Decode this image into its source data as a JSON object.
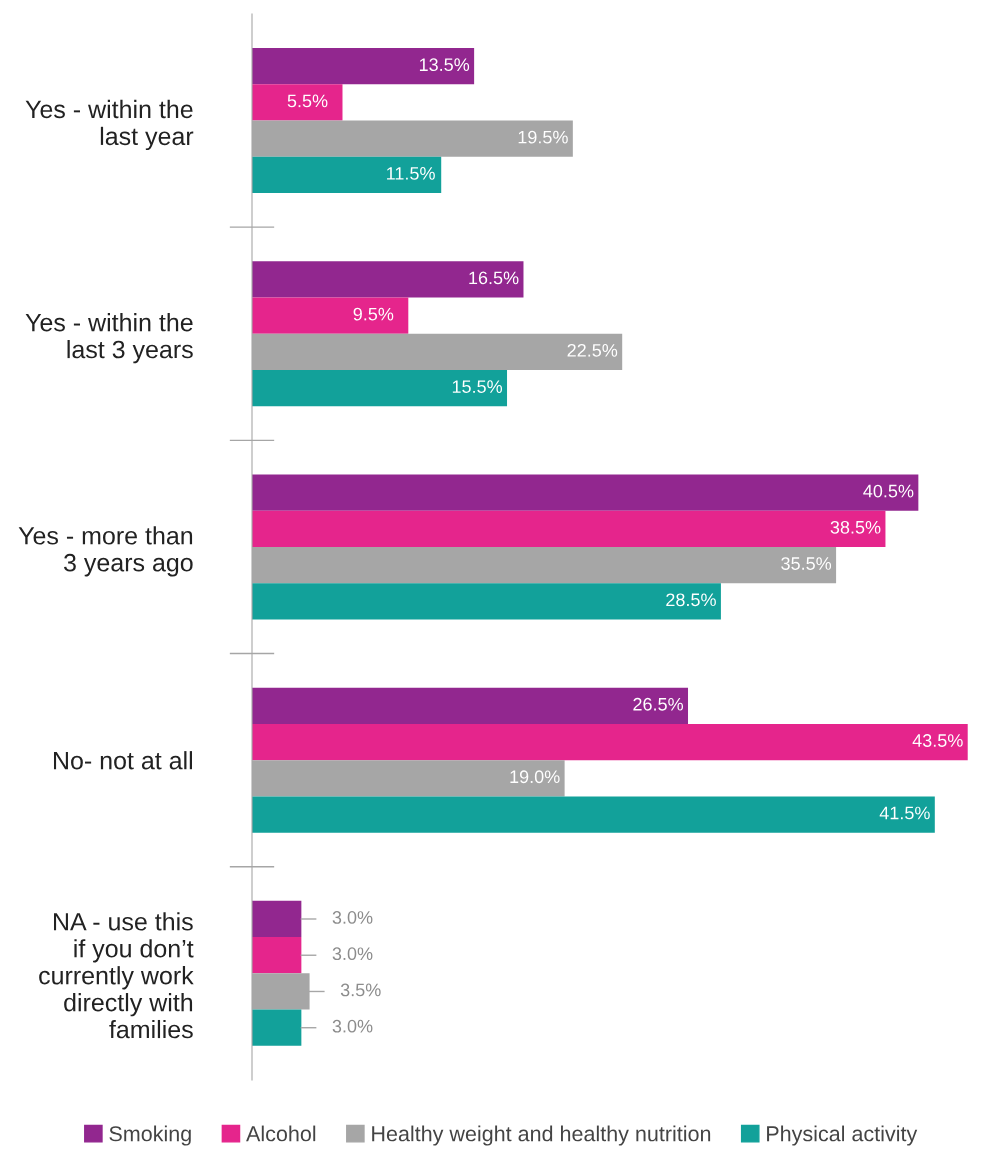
{
  "chart_data": {
    "type": "bar",
    "orientation": "horizontal",
    "categories": [
      "Yes - within the\nlast year",
      "Yes - within the\nlast 3 years",
      "Yes - more than\n3 years ago",
      "No- not at all",
      "NA - use this\nif you don’t\ncurrently work\ndirectly with\nfamilies"
    ],
    "series": [
      {
        "name": "Smoking",
        "color": "#92278f",
        "values": [
          13.5,
          16.5,
          40.5,
          26.5,
          3.0
        ],
        "value_labels": [
          "13.5%",
          "16.5%",
          "40.5%",
          "26.5%",
          "3.0%"
        ]
      },
      {
        "name": "Alcohol",
        "color": "#e5258c",
        "values": [
          5.5,
          9.5,
          38.5,
          43.5,
          3.0
        ],
        "value_labels": [
          "5.5%",
          "9.5%",
          "38.5%",
          "43.5%",
          "3.0%"
        ]
      },
      {
        "name": "Healthy weight and healthy nutrition",
        "color": "#a6a6a6",
        "values": [
          19.5,
          22.5,
          35.5,
          19.0,
          3.5
        ],
        "value_labels": [
          "19.5%",
          "22.5%",
          "35.5%",
          "19.0%",
          "3.5%"
        ]
      },
      {
        "name": "Physical activity",
        "color": "#12a19a",
        "values": [
          11.5,
          15.5,
          28.5,
          41.5,
          3.0
        ],
        "value_labels": [
          "11.5%",
          "15.5%",
          "28.5%",
          "41.5%",
          "3.0%"
        ]
      }
    ],
    "legend": "bottom",
    "grid": false
  }
}
